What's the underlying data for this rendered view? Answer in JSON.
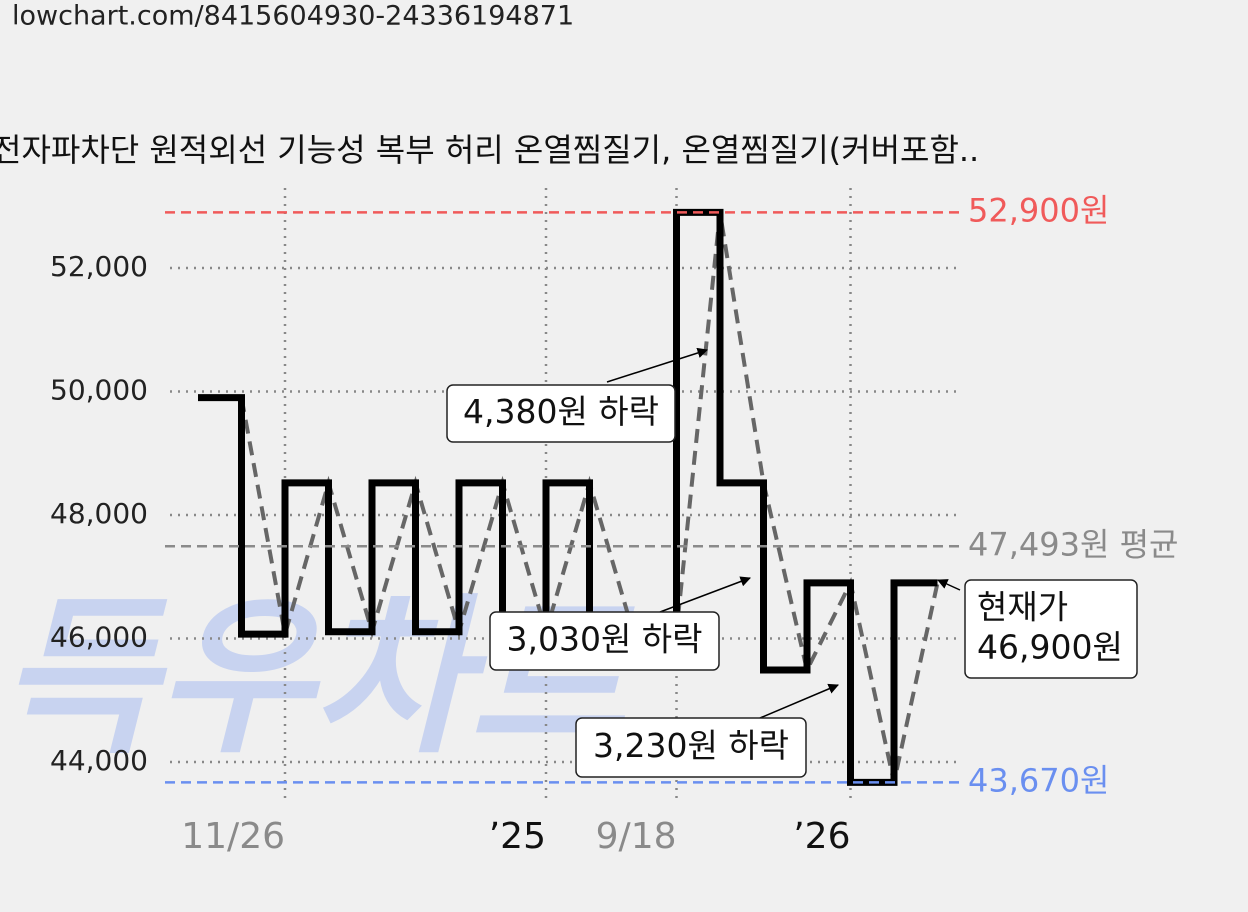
{
  "header": {
    "url": "lowchart.com/8415604930-24336194871"
  },
  "chart_data": {
    "type": "step",
    "title": "전자파차단 원적외선 기능성 복부 허리 온열찜질기, 온열찜질기(커버포함..",
    "watermark": "득우차트",
    "categories": [
      null,
      null,
      "11/26",
      null,
      null,
      null,
      null,
      null,
      "’25",
      null,
      null,
      "9/18",
      null,
      null,
      null,
      "’26",
      null,
      null
    ],
    "xtick_colors": [
      null,
      null,
      "#8a8a8a",
      null,
      null,
      null,
      null,
      null,
      "#111111",
      null,
      null,
      "#8a8a8a",
      null,
      null,
      null,
      "#111111",
      null,
      null
    ],
    "series": [
      {
        "color": "#000000",
        "values": [
          49900,
          46070,
          48520,
          46110,
          48520,
          46110,
          48520,
          46110,
          48520,
          46110,
          46110,
          52900,
          48520,
          45490,
          46900,
          43670,
          46900,
          46900
        ]
      }
    ],
    "trend_color": "#666666",
    "ylim": [
      43000,
      53200
    ],
    "yticks": [
      {
        "value": 44000,
        "label": "44,000"
      },
      {
        "value": 46000,
        "label": "46,000"
      },
      {
        "value": 48000,
        "label": "48,000"
      },
      {
        "value": 50000,
        "label": "50,000"
      },
      {
        "value": 52000,
        "label": "52,000"
      }
    ],
    "grid": true,
    "reference_lines": [
      {
        "value": 52900,
        "label": "52,900원",
        "color": "#f05a5a"
      },
      {
        "value": 47493,
        "label": "47,493원 평균",
        "color": "#8a8a8a"
      },
      {
        "value": 43670,
        "label": "43,670원",
        "color": "#6a8ff0"
      }
    ],
    "annotations": [
      {
        "lines": [
          "4,380원 하락"
        ]
      },
      {
        "lines": [
          "3,030원 하락"
        ]
      },
      {
        "lines": [
          "3,230원 하락"
        ]
      },
      {
        "lines": [
          "현재가",
          "46,900원"
        ]
      }
    ]
  }
}
